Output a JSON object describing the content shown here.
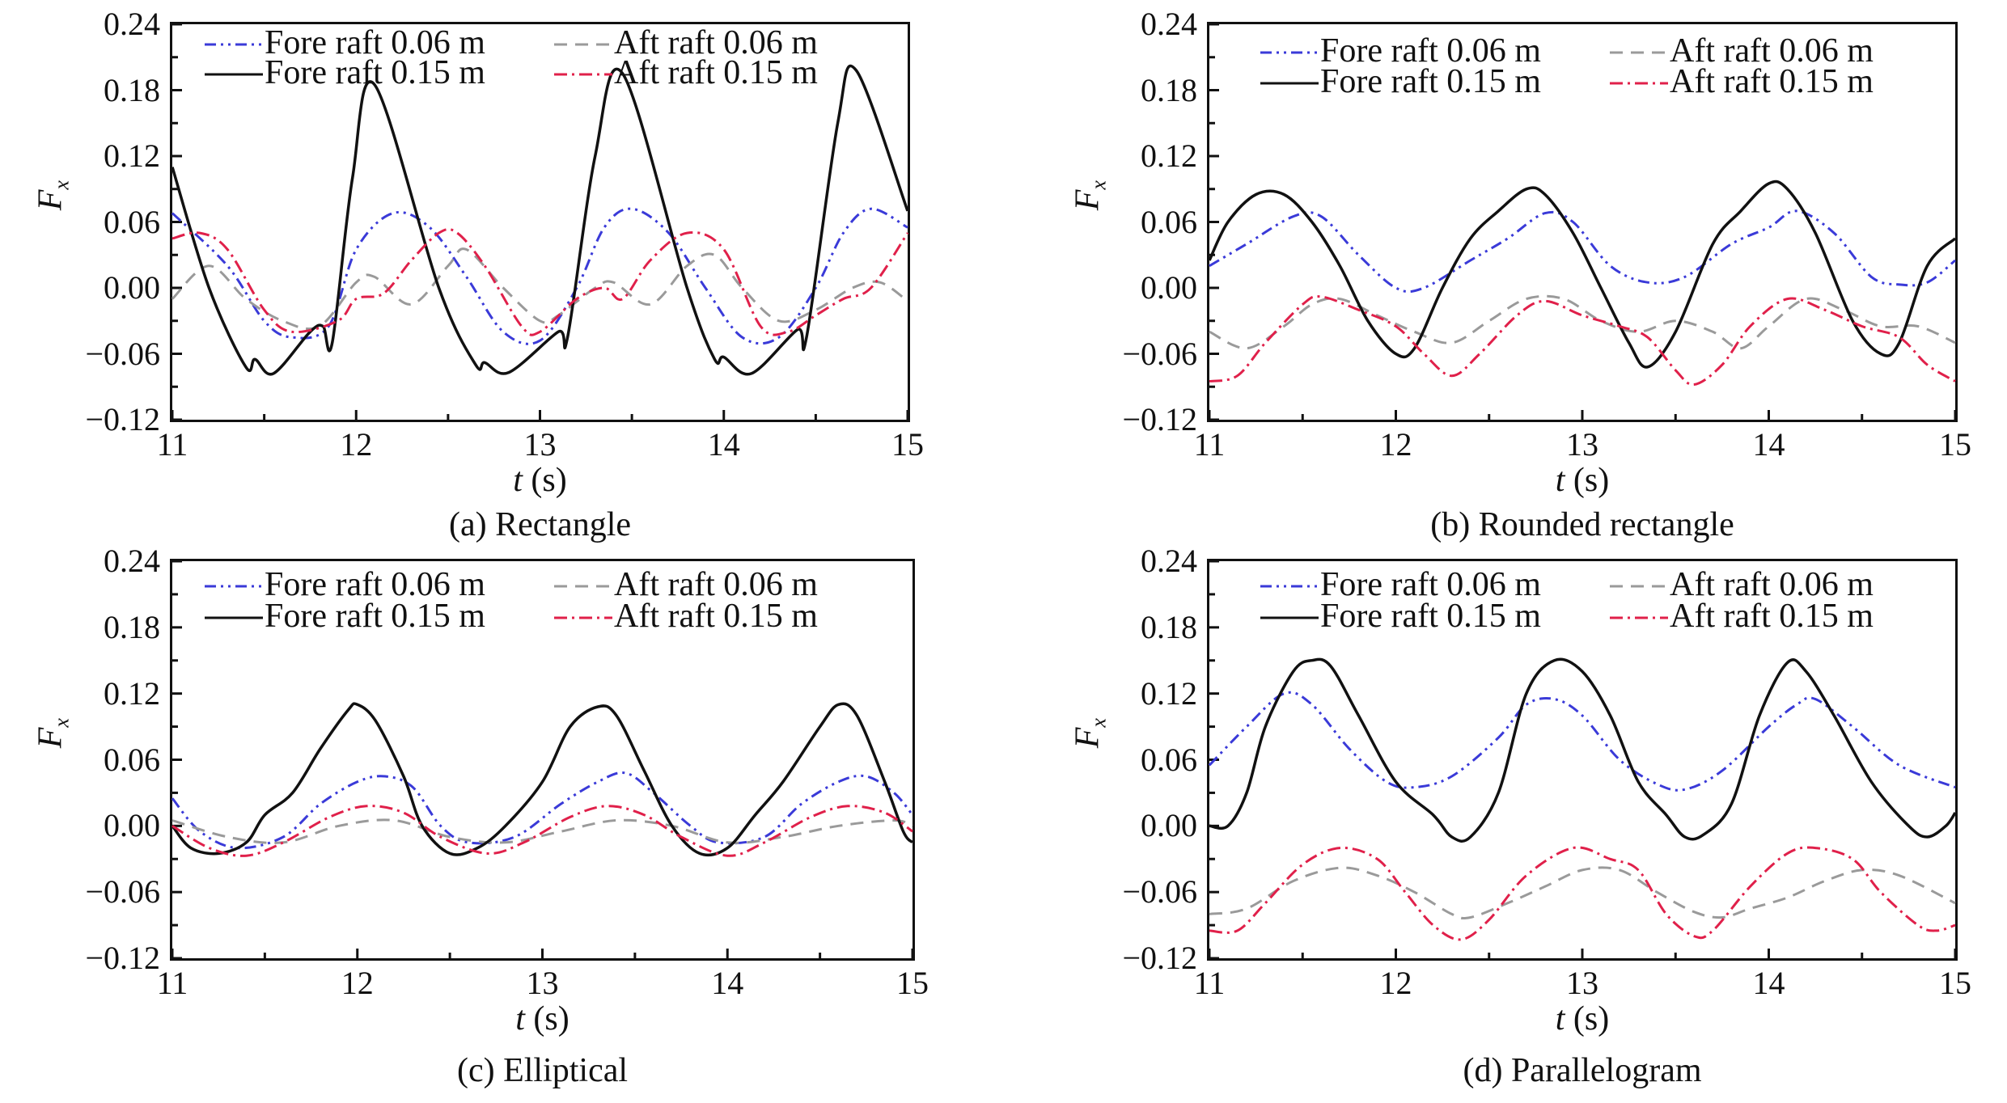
{
  "legend": {
    "fore_006": "Fore raft 0.06 m",
    "aft_006": "Aft raft 0.06 m",
    "fore_015": "Fore raft 0.15 m",
    "aft_015": "Aft raft 0.15 m"
  },
  "colors": {
    "fore_006": "#3a3ad8",
    "aft_006": "#9a9a9a",
    "fore_015": "#111111",
    "aft_015": "#e0204a"
  },
  "chart_data": [
    {
      "type": "line",
      "caption": "(a) Rectangle",
      "xlabel_var": "t",
      "xlabel_unit": "(s)",
      "ylabel": "F",
      "ylabel_sub": "x",
      "xlim": [
        11,
        15
      ],
      "ylim": [
        -0.12,
        0.24
      ],
      "xticks": [
        "11",
        "12",
        "13",
        "14",
        "15"
      ],
      "yticks": [
        "0.24",
        "0.18",
        "0.12",
        "0.06",
        "0.00",
        "−0.06",
        "−0.12"
      ],
      "series": [
        {
          "name": "Fore raft 0.06 m",
          "x": [
            11,
            11.3,
            11.5,
            11.65,
            11.85,
            12.0,
            12.2,
            12.4,
            12.6,
            12.8,
            13.0,
            13.2,
            13.35,
            13.5,
            13.7,
            13.9,
            14.1,
            14.3,
            14.5,
            14.65,
            14.8,
            15
          ],
          "y": [
            0.068,
            0.02,
            -0.03,
            -0.045,
            -0.035,
            0.035,
            0.068,
            0.055,
            0.01,
            -0.04,
            -0.048,
            0.0,
            0.055,
            0.072,
            0.05,
            0.0,
            -0.045,
            -0.045,
            0.0,
            0.05,
            0.072,
            0.055
          ]
        },
        {
          "name": "Aft raft 0.06 m",
          "x": [
            11,
            11.2,
            11.4,
            11.6,
            11.8,
            12.0,
            12.1,
            12.3,
            12.5,
            12.6,
            12.8,
            13.0,
            13.1,
            13.3,
            13.4,
            13.6,
            13.8,
            13.95,
            14.1,
            14.3,
            14.5,
            14.7,
            14.85,
            15
          ],
          "y": [
            -0.01,
            0.02,
            -0.01,
            -0.03,
            -0.035,
            0.005,
            0.01,
            -0.015,
            0.02,
            0.035,
            0.0,
            -0.03,
            -0.025,
            0.0,
            0.005,
            -0.015,
            0.02,
            0.03,
            0.0,
            -0.03,
            -0.02,
            0.0,
            0.005,
            -0.012
          ]
        },
        {
          "name": "Fore raft 0.15 m",
          "x": [
            11,
            11.2,
            11.4,
            11.45,
            11.55,
            11.75,
            11.82,
            11.87,
            11.98,
            12.1,
            12.45,
            12.65,
            12.7,
            12.83,
            13.1,
            13.15,
            13.3,
            13.45,
            13.8,
            13.95,
            14.0,
            14.15,
            14.4,
            14.45,
            14.62,
            14.72,
            15
          ],
          "y": [
            0.11,
            0.0,
            -0.072,
            -0.065,
            -0.078,
            -0.04,
            -0.035,
            -0.05,
            0.1,
            0.185,
            0.0,
            -0.07,
            -0.068,
            -0.077,
            -0.04,
            -0.045,
            0.12,
            0.195,
            0.0,
            -0.065,
            -0.063,
            -0.078,
            -0.038,
            -0.045,
            0.15,
            0.198,
            0.07
          ]
        },
        {
          "name": "Aft raft 0.15 m",
          "x": [
            11,
            11.15,
            11.3,
            11.5,
            11.65,
            11.9,
            12.0,
            12.15,
            12.3,
            12.45,
            12.55,
            12.7,
            12.9,
            13.0,
            13.2,
            13.35,
            13.45,
            13.6,
            13.8,
            14.0,
            14.2,
            14.35,
            14.5,
            14.65,
            14.8,
            15
          ],
          "y": [
            0.045,
            0.05,
            0.035,
            -0.02,
            -0.04,
            -0.03,
            -0.01,
            -0.005,
            0.025,
            0.05,
            0.05,
            0.02,
            -0.035,
            -0.04,
            -0.01,
            0.0,
            -0.01,
            0.025,
            0.05,
            0.035,
            -0.035,
            -0.04,
            -0.025,
            -0.01,
            0.0,
            0.05
          ]
        }
      ]
    },
    {
      "type": "line",
      "caption": "(b) Rounded rectangle",
      "xlabel_var": "t",
      "xlabel_unit": "(s)",
      "ylabel": "F",
      "ylabel_sub": "x",
      "xlim": [
        11,
        15
      ],
      "ylim": [
        -0.12,
        0.24
      ],
      "xticks": [
        "11",
        "12",
        "13",
        "14",
        "15"
      ],
      "yticks": [
        "0.24",
        "0.18",
        "0.12",
        "0.06",
        "0.00",
        "−0.06",
        "−0.12"
      ],
      "series": [
        {
          "name": "Fore raft 0.06 m",
          "x": [
            11,
            11.2,
            11.45,
            11.6,
            11.8,
            12.0,
            12.15,
            12.4,
            12.6,
            12.8,
            12.95,
            13.15,
            13.35,
            13.55,
            13.8,
            14.0,
            14.15,
            14.35,
            14.55,
            14.7,
            14.85,
            15
          ],
          "y": [
            0.02,
            0.04,
            0.065,
            0.065,
            0.03,
            0.0,
            0.0,
            0.025,
            0.045,
            0.068,
            0.06,
            0.02,
            0.005,
            0.01,
            0.04,
            0.055,
            0.07,
            0.05,
            0.01,
            0.003,
            0.005,
            0.025
          ]
        },
        {
          "name": "Aft raft 0.06 m",
          "x": [
            11,
            11.2,
            11.4,
            11.55,
            11.7,
            11.9,
            12.1,
            12.3,
            12.5,
            12.7,
            12.9,
            13.1,
            13.3,
            13.5,
            13.7,
            13.85,
            14.0,
            14.2,
            14.4,
            14.6,
            14.8,
            15
          ],
          "y": [
            -0.04,
            -0.055,
            -0.035,
            -0.015,
            -0.01,
            -0.025,
            -0.04,
            -0.05,
            -0.03,
            -0.01,
            -0.01,
            -0.03,
            -0.04,
            -0.03,
            -0.04,
            -0.055,
            -0.035,
            -0.01,
            -0.02,
            -0.035,
            -0.035,
            -0.05
          ]
        },
        {
          "name": "Fore raft 0.15 m",
          "x": [
            11,
            11.1,
            11.25,
            11.4,
            11.55,
            11.7,
            11.85,
            12.0,
            12.1,
            12.25,
            12.4,
            12.55,
            12.7,
            12.8,
            12.95,
            13.1,
            13.25,
            13.35,
            13.5,
            13.7,
            13.85,
            14.0,
            14.1,
            14.25,
            14.45,
            14.6,
            14.7,
            14.85,
            15
          ],
          "y": [
            0.025,
            0.06,
            0.085,
            0.085,
            0.06,
            0.02,
            -0.03,
            -0.06,
            -0.055,
            0.0,
            0.045,
            0.07,
            0.09,
            0.085,
            0.05,
            0.0,
            -0.05,
            -0.072,
            -0.04,
            0.04,
            0.07,
            0.095,
            0.09,
            0.05,
            -0.03,
            -0.06,
            -0.05,
            0.02,
            0.045
          ]
        },
        {
          "name": "Aft raft 0.15 m",
          "x": [
            11,
            11.15,
            11.3,
            11.5,
            11.6,
            11.8,
            12.0,
            12.15,
            12.3,
            12.45,
            12.65,
            12.8,
            13.0,
            13.2,
            13.35,
            13.5,
            13.6,
            13.75,
            13.9,
            14.1,
            14.3,
            14.5,
            14.7,
            14.85,
            15
          ],
          "y": [
            -0.085,
            -0.08,
            -0.05,
            -0.015,
            -0.008,
            -0.02,
            -0.035,
            -0.06,
            -0.08,
            -0.06,
            -0.025,
            -0.012,
            -0.025,
            -0.035,
            -0.045,
            -0.075,
            -0.088,
            -0.07,
            -0.035,
            -0.01,
            -0.02,
            -0.035,
            -0.045,
            -0.07,
            -0.085
          ]
        }
      ]
    },
    {
      "type": "line",
      "caption": "(c) Elliptical",
      "xlabel_var": "t",
      "xlabel_unit": "(s)",
      "ylabel": "F",
      "ylabel_sub": "x",
      "xlim": [
        11,
        15
      ],
      "ylim": [
        -0.12,
        0.24
      ],
      "xticks": [
        "11",
        "12",
        "13",
        "14",
        "15"
      ],
      "yticks": [
        "0.24",
        "0.18",
        "0.12",
        "0.06",
        "0.00",
        "−0.06",
        "−0.12"
      ],
      "series": [
        {
          "name": "Fore raft 0.06 m",
          "x": [
            11,
            11.15,
            11.35,
            11.6,
            11.8,
            12.0,
            12.15,
            12.3,
            12.45,
            12.6,
            12.85,
            13.1,
            13.3,
            13.45,
            13.6,
            13.8,
            13.95,
            14.2,
            14.4,
            14.6,
            14.75,
            14.9,
            15
          ],
          "y": [
            0.025,
            -0.005,
            -0.02,
            -0.01,
            0.02,
            0.04,
            0.045,
            0.035,
            0.0,
            -0.015,
            -0.01,
            0.02,
            0.04,
            0.048,
            0.03,
            0.0,
            -0.015,
            -0.01,
            0.02,
            0.04,
            0.045,
            0.03,
            0.01
          ]
        },
        {
          "name": "Aft raft 0.06 m",
          "x": [
            11,
            11.3,
            11.6,
            11.9,
            12.2,
            12.5,
            12.8,
            13.1,
            13.4,
            13.7,
            14.0,
            14.3,
            14.6,
            14.9,
            15
          ],
          "y": [
            0.005,
            -0.01,
            -0.015,
            0.0,
            0.005,
            -0.01,
            -0.015,
            -0.005,
            0.005,
            0.0,
            -0.015,
            -0.01,
            0.0,
            0.005,
            0.0
          ]
        },
        {
          "name": "Fore raft 0.15 m",
          "x": [
            11,
            11.1,
            11.25,
            11.4,
            11.5,
            11.65,
            11.8,
            11.95,
            12.0,
            12.1,
            12.25,
            12.35,
            12.5,
            12.65,
            12.8,
            13.0,
            13.15,
            13.3,
            13.4,
            13.55,
            13.7,
            13.85,
            14.0,
            14.15,
            14.3,
            14.5,
            14.6,
            14.7,
            14.85,
            14.95,
            15
          ],
          "y": [
            0.0,
            -0.02,
            -0.025,
            -0.015,
            0.01,
            0.03,
            0.07,
            0.105,
            0.11,
            0.095,
            0.045,
            0.0,
            -0.025,
            -0.02,
            0.0,
            0.04,
            0.09,
            0.108,
            0.1,
            0.05,
            0.0,
            -0.025,
            -0.02,
            0.01,
            0.04,
            0.09,
            0.11,
            0.1,
            0.04,
            -0.005,
            -0.015
          ]
        },
        {
          "name": "Aft raft 0.15 m",
          "x": [
            11,
            11.2,
            11.4,
            11.6,
            11.85,
            12.05,
            12.25,
            12.45,
            12.7,
            12.9,
            13.15,
            13.35,
            13.55,
            13.75,
            14.0,
            14.2,
            14.45,
            14.65,
            14.85,
            15
          ],
          "y": [
            0.0,
            -0.02,
            -0.027,
            -0.015,
            0.008,
            0.018,
            0.012,
            -0.01,
            -0.025,
            -0.015,
            0.008,
            0.018,
            0.01,
            -0.01,
            -0.027,
            -0.015,
            0.008,
            0.018,
            0.012,
            -0.005
          ]
        }
      ]
    },
    {
      "type": "line",
      "caption": "(d) Parallelogram",
      "xlabel_var": "t",
      "xlabel_unit": "(s)",
      "ylabel": "F",
      "ylabel_sub": "x",
      "xlim": [
        11,
        15
      ],
      "ylim": [
        -0.12,
        0.24
      ],
      "xticks": [
        "11",
        "12",
        "13",
        "14",
        "15"
      ],
      "yticks": [
        "0.24",
        "0.18",
        "0.12",
        "0.06",
        "0.00",
        "−0.06",
        "−0.12"
      ],
      "series": [
        {
          "name": "Fore raft 0.06 m",
          "x": [
            11,
            11.2,
            11.4,
            11.55,
            11.75,
            11.95,
            12.1,
            12.3,
            12.55,
            12.7,
            12.85,
            13.0,
            13.2,
            13.4,
            13.55,
            13.75,
            14.0,
            14.15,
            14.25,
            14.45,
            14.7,
            15
          ],
          "y": [
            0.055,
            0.09,
            0.12,
            0.11,
            0.07,
            0.04,
            0.035,
            0.045,
            0.08,
            0.11,
            0.115,
            0.1,
            0.06,
            0.038,
            0.033,
            0.05,
            0.09,
            0.11,
            0.115,
            0.09,
            0.055,
            0.035
          ]
        },
        {
          "name": "Aft raft 0.06 m",
          "x": [
            11,
            11.2,
            11.45,
            11.7,
            11.9,
            12.1,
            12.3,
            12.4,
            12.6,
            12.8,
            13.0,
            13.2,
            13.4,
            13.6,
            13.75,
            13.9,
            14.1,
            14.3,
            14.5,
            14.7,
            15
          ],
          "y": [
            -0.08,
            -0.075,
            -0.05,
            -0.038,
            -0.045,
            -0.06,
            -0.08,
            -0.083,
            -0.07,
            -0.055,
            -0.04,
            -0.04,
            -0.06,
            -0.078,
            -0.083,
            -0.075,
            -0.065,
            -0.05,
            -0.04,
            -0.045,
            -0.07
          ]
        },
        {
          "name": "Fore raft 0.15 m",
          "x": [
            11,
            11.1,
            11.2,
            11.3,
            11.45,
            11.55,
            11.65,
            11.8,
            12.0,
            12.2,
            12.3,
            12.4,
            12.55,
            12.7,
            12.85,
            13.0,
            13.15,
            13.3,
            13.45,
            13.55,
            13.65,
            13.8,
            13.95,
            14.1,
            14.2,
            14.35,
            14.55,
            14.75,
            14.85,
            14.95,
            15
          ],
          "y": [
            0.0,
            0.0,
            0.03,
            0.09,
            0.14,
            0.15,
            0.145,
            0.1,
            0.04,
            0.01,
            -0.01,
            -0.01,
            0.03,
            0.12,
            0.15,
            0.14,
            0.1,
            0.04,
            0.01,
            -0.01,
            -0.008,
            0.02,
            0.1,
            0.148,
            0.14,
            0.1,
            0.04,
            0.0,
            -0.01,
            0.0,
            0.012
          ]
        },
        {
          "name": "Aft raft 0.15 m",
          "x": [
            11,
            11.15,
            11.3,
            11.5,
            11.7,
            11.9,
            12.05,
            12.2,
            12.35,
            12.5,
            12.7,
            12.95,
            13.15,
            13.3,
            13.45,
            13.6,
            13.7,
            13.9,
            14.1,
            14.25,
            14.45,
            14.6,
            14.8,
            14.9,
            15
          ],
          "y": [
            -0.095,
            -0.095,
            -0.07,
            -0.035,
            -0.02,
            -0.03,
            -0.06,
            -0.09,
            -0.103,
            -0.085,
            -0.045,
            -0.02,
            -0.03,
            -0.04,
            -0.08,
            -0.1,
            -0.095,
            -0.055,
            -0.025,
            -0.02,
            -0.03,
            -0.06,
            -0.09,
            -0.095,
            -0.09
          ]
        }
      ]
    }
  ]
}
